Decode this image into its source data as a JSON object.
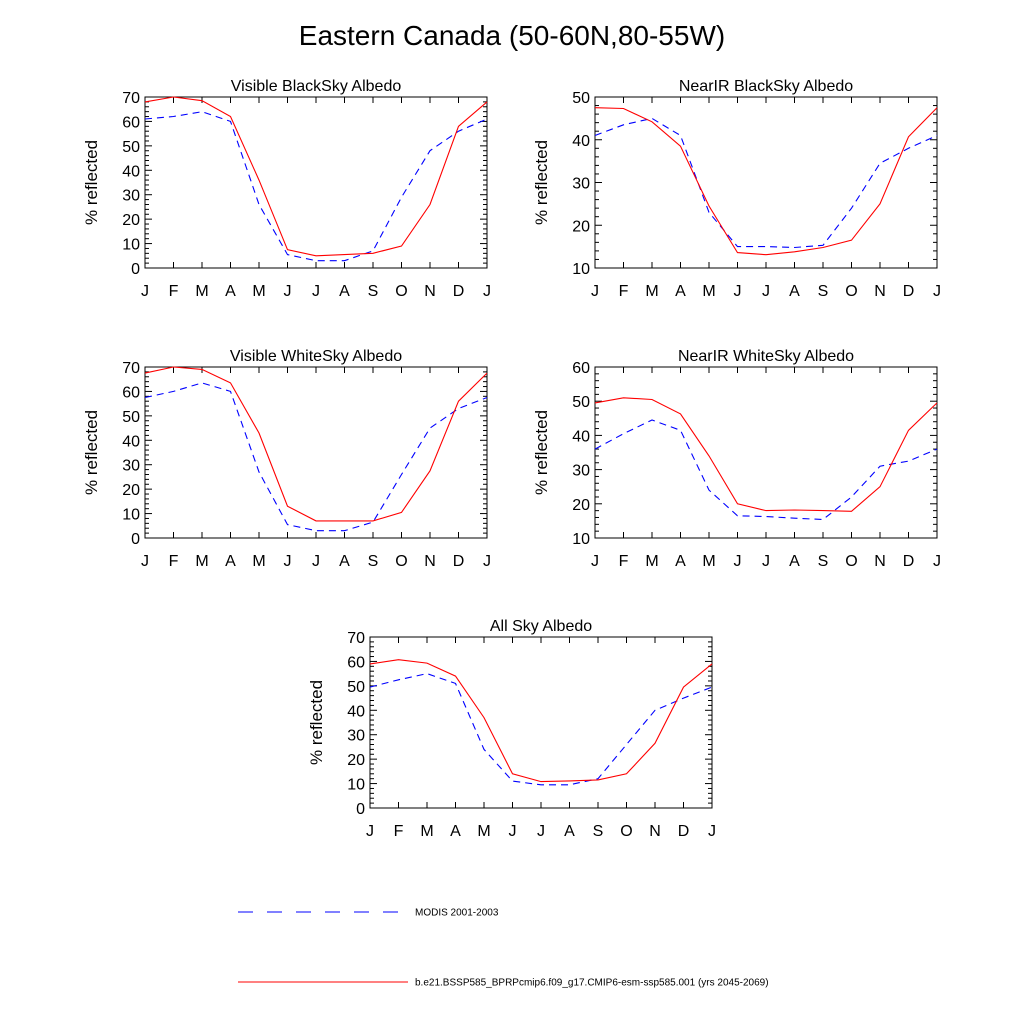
{
  "page_title": "Eastern Canada (50-60N,80-55W)",
  "legend": [
    {
      "name": "MODIS 2001-2003",
      "color": "#0000ff",
      "dash": true
    },
    {
      "name": "b.e21.BSSP585_BPRPcmip6.f09_g17.CMIP6-esm-ssp585.001 (yrs 2045-2069)",
      "color": "#ff0000",
      "dash": false
    }
  ],
  "chart_data": [
    {
      "type": "line",
      "title": "Visible BlackSky Albedo",
      "ylabel": "% reflected",
      "xlabel": "",
      "categories": [
        "J",
        "F",
        "M",
        "A",
        "M",
        "J",
        "J",
        "A",
        "S",
        "O",
        "N",
        "D",
        "J"
      ],
      "ylim": [
        0,
        70
      ],
      "yticks": [
        0,
        10,
        20,
        30,
        40,
        50,
        60,
        70
      ],
      "series": [
        {
          "name": "MODIS 2001-2003",
          "values": [
            61,
            62,
            64,
            60,
            26,
            5.5,
            3,
            3,
            7,
            29,
            48,
            56,
            61
          ]
        },
        {
          "name": "b.e21.BSSP585_BPRPcmip6.f09_g17.CMIP6-esm-ssp585.001 (yrs 2045-2069)",
          "values": [
            68,
            70,
            68.5,
            62,
            36,
            7.5,
            5,
            5.5,
            6,
            9,
            26,
            58,
            68
          ]
        }
      ]
    },
    {
      "type": "line",
      "title": "NearIR BlackSky Albedo",
      "ylabel": "% reflected",
      "xlabel": "",
      "categories": [
        "J",
        "F",
        "M",
        "A",
        "M",
        "J",
        "J",
        "A",
        "S",
        "O",
        "N",
        "D",
        "J"
      ],
      "ylim": [
        10,
        50
      ],
      "yticks": [
        10,
        20,
        30,
        40,
        50
      ],
      "series": [
        {
          "name": "MODIS 2001-2003",
          "values": [
            41,
            43.5,
            45,
            41,
            23,
            15,
            15,
            14.8,
            15.3,
            24,
            34.5,
            38,
            41
          ]
        },
        {
          "name": "b.e21.BSSP585_BPRPcmip6.f09_g17.CMIP6-esm-ssp585.001 (yrs 2045-2069)",
          "values": [
            47.5,
            47.3,
            44.2,
            38.5,
            24.5,
            13.6,
            13.1,
            13.8,
            14.8,
            16.5,
            25,
            40.7,
            47.5
          ]
        }
      ]
    },
    {
      "type": "line",
      "title": "Visible WhiteSky Albedo",
      "ylabel": "% reflected",
      "xlabel": "",
      "categories": [
        "J",
        "F",
        "M",
        "A",
        "M",
        "J",
        "J",
        "A",
        "S",
        "O",
        "N",
        "D",
        "J"
      ],
      "ylim": [
        0,
        70
      ],
      "yticks": [
        0,
        10,
        20,
        30,
        40,
        50,
        60,
        70
      ],
      "series": [
        {
          "name": "MODIS 2001-2003",
          "values": [
            57.5,
            60,
            63.5,
            60,
            27,
            5.5,
            3,
            3,
            6.5,
            26,
            45,
            53,
            57.5
          ]
        },
        {
          "name": "b.e21.BSSP585_BPRPcmip6.f09_g17.CMIP6-esm-ssp585.001 (yrs 2045-2069)",
          "values": [
            67.5,
            70,
            69,
            63.5,
            43,
            13,
            7,
            7,
            7,
            10.5,
            27.5,
            56,
            67.5
          ]
        }
      ]
    },
    {
      "type": "line",
      "title": "NearIR WhiteSky Albedo",
      "ylabel": "% reflected",
      "xlabel": "",
      "categories": [
        "J",
        "F",
        "M",
        "A",
        "M",
        "J",
        "J",
        "A",
        "S",
        "O",
        "N",
        "D",
        "J"
      ],
      "ylim": [
        10,
        60
      ],
      "yticks": [
        10,
        20,
        30,
        40,
        50,
        60
      ],
      "series": [
        {
          "name": "MODIS 2001-2003",
          "values": [
            36,
            40.5,
            44.5,
            41.5,
            24,
            16.5,
            16.3,
            15.8,
            15.4,
            22,
            31,
            32.5,
            36
          ]
        },
        {
          "name": "b.e21.BSSP585_BPRPcmip6.f09_g17.CMIP6-esm-ssp585.001 (yrs 2045-2069)",
          "values": [
            49.5,
            51,
            50.5,
            46.3,
            34,
            20,
            18,
            18.2,
            18,
            17.8,
            25,
            41.5,
            49.5
          ]
        }
      ]
    },
    {
      "type": "line",
      "title": "All Sky Albedo",
      "ylabel": "% reflected",
      "xlabel": "",
      "categories": [
        "J",
        "F",
        "M",
        "A",
        "M",
        "J",
        "J",
        "A",
        "S",
        "O",
        "N",
        "D",
        "J"
      ],
      "ylim": [
        0,
        70
      ],
      "yticks": [
        0,
        10,
        20,
        30,
        40,
        50,
        60,
        70
      ],
      "series": [
        {
          "name": "MODIS 2001-2003",
          "values": [
            49.5,
            52.5,
            55,
            51,
            24,
            11,
            9.5,
            9.5,
            12,
            26,
            40,
            45,
            49.5
          ]
        },
        {
          "name": "b.e21.BSSP585_BPRPcmip6.f09_g17.CMIP6-esm-ssp585.001 (yrs 2045-2069)",
          "values": [
            59,
            60.7,
            59.3,
            54,
            37,
            14,
            10.8,
            11.1,
            11.5,
            14,
            26.5,
            49.5,
            59
          ]
        }
      ]
    }
  ]
}
